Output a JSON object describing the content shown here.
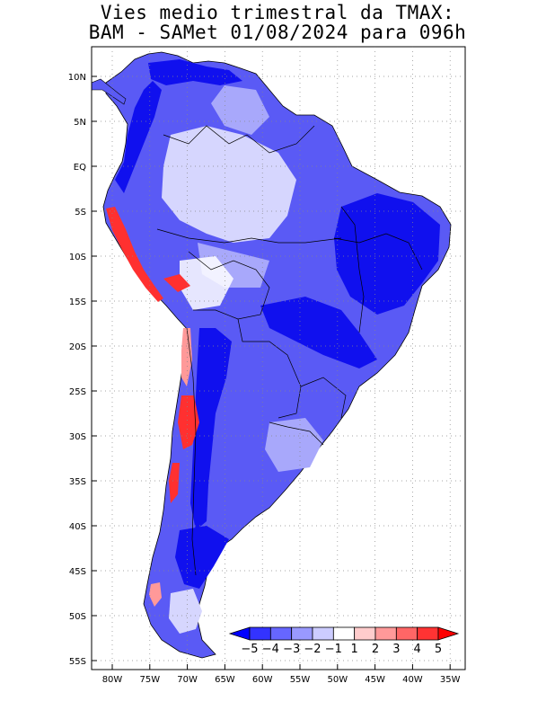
{
  "title": {
    "line1": "Vies medio trimestral da TMAX:",
    "line2": "BAM - SAMet 01/08/2024  para 096h"
  },
  "axes": {
    "lat_labels": [
      "10N",
      "5N",
      "EQ",
      "5S",
      "10S",
      "15S",
      "20S",
      "25S",
      "30S",
      "35S",
      "40S",
      "45S",
      "50S",
      "55S"
    ],
    "lon_labels": [
      "80W",
      "75W",
      "70W",
      "65W",
      "60W",
      "55W",
      "50W",
      "45W",
      "40W",
      "35W"
    ]
  },
  "colorbar": {
    "labels": [
      "-5",
      "-4",
      "-3",
      "-2",
      "-1",
      "1",
      "2",
      "3",
      "4",
      "5"
    ],
    "colors": [
      "#0000ff",
      "#3333ff",
      "#6666ff",
      "#9999ff",
      "#ccccff",
      "#ffffff",
      "#ffcccc",
      "#ff9999",
      "#ff6666",
      "#ff3333",
      "#ff0000"
    ]
  },
  "colors": {
    "ocean": "#ffffff",
    "land_neutral": "#ffffff",
    "strong_cold": "#1010ee",
    "moderate_cold": "#5a5af5",
    "light_cold": "#a8a8fb",
    "very_light_cold": "#d6d6fe",
    "warm": "#ff3030",
    "light_warm": "#ff9999",
    "border": "#000000"
  }
}
